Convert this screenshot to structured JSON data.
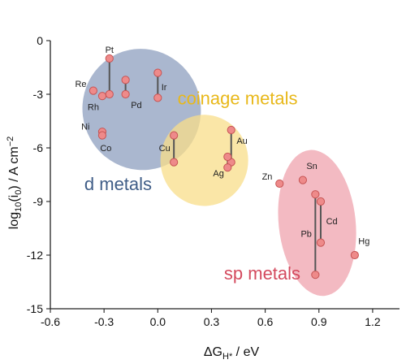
{
  "chart_data": {
    "type": "scatter",
    "xlabel_main": "ΔG",
    "xlabel_sub": "H*",
    "xlabel_tail": " / eV",
    "ylabel_main": "log",
    "ylabel_sub1": "10",
    "ylabel_paren_open": "(i",
    "ylabel_sub2": "0",
    "ylabel_paren_close": ") / A cm",
    "ylabel_sup": "−2",
    "xlim": [
      -0.6,
      1.35
    ],
    "ylim": [
      -15,
      0
    ],
    "xticks": [
      -0.6,
      -0.3,
      0.0,
      0.3,
      0.6,
      0.9,
      1.2
    ],
    "xtick_labels": [
      "-0.6",
      "-0.3",
      "0.0",
      "0.3",
      "0.6",
      "0.9",
      "1.2"
    ],
    "yticks": [
      0,
      -3,
      -6,
      -9,
      -12,
      -15
    ],
    "ytick_labels": [
      "0",
      "-3",
      "-6",
      "-9",
      "-12",
      "-15"
    ],
    "groups": [
      {
        "name": "d metals",
        "color": "#3f5d87",
        "fill": "#8e9fbf",
        "center": [
          -0.09,
          -3.85
        ],
        "radii": [
          0.33,
          3.4
        ],
        "rotation": -18
      },
      {
        "name": "coinage metals",
        "color": "#e8b81a",
        "fill": "#f8dd8a",
        "center": [
          0.26,
          -6.7
        ],
        "radii": [
          0.245,
          2.55
        ],
        "rotation": 0
      },
      {
        "name": "sp metals",
        "color": "#d44a5e",
        "fill": "#efa3ad",
        "center": [
          0.89,
          -10.2
        ],
        "radii": [
          0.215,
          4.1
        ],
        "rotation": -6
      }
    ],
    "points": [
      {
        "metal": "Pt",
        "x": -0.27,
        "y": -1.0
      },
      {
        "metal": "Pt",
        "x": -0.27,
        "y": -3.0
      },
      {
        "metal": "Pd",
        "x": -0.18,
        "y": -2.2
      },
      {
        "metal": "Pd",
        "x": -0.18,
        "y": -3.0
      },
      {
        "metal": "Ir",
        "x": 0.0,
        "y": -1.8
      },
      {
        "metal": "Ir",
        "x": 0.0,
        "y": -3.2
      },
      {
        "metal": "Re",
        "x": -0.36,
        "y": -2.8
      },
      {
        "metal": "Rh",
        "x": -0.31,
        "y": -3.1
      },
      {
        "metal": "Ni",
        "x": -0.31,
        "y": -5.1
      },
      {
        "metal": "Co",
        "x": -0.31,
        "y": -5.3
      },
      {
        "metal": "Cu",
        "x": 0.09,
        "y": -5.3
      },
      {
        "metal": "Cu",
        "x": 0.09,
        "y": -6.8
      },
      {
        "metal": "Au",
        "x": 0.41,
        "y": -5.0
      },
      {
        "metal": "Au",
        "x": 0.41,
        "y": -6.8
      },
      {
        "metal": "Ag",
        "x": 0.39,
        "y": -6.5
      },
      {
        "metal": "Ag",
        "x": 0.39,
        "y": -7.1
      },
      {
        "metal": "Zn",
        "x": 0.68,
        "y": -8.0
      },
      {
        "metal": "Sn",
        "x": 0.81,
        "y": -7.8
      },
      {
        "metal": "Pb",
        "x": 0.88,
        "y": -8.6
      },
      {
        "metal": "Pb",
        "x": 0.88,
        "y": -13.1
      },
      {
        "metal": "Cd",
        "x": 0.91,
        "y": -9.0
      },
      {
        "metal": "Cd",
        "x": 0.91,
        "y": -11.3
      },
      {
        "metal": "Hg",
        "x": 1.1,
        "y": -12.0
      }
    ],
    "connections": [
      {
        "metal": "Pt",
        "x": -0.27,
        "y1": -1.0,
        "y2": -3.0
      },
      {
        "metal": "Pd",
        "x": -0.18,
        "y1": -2.2,
        "y2": -3.0
      },
      {
        "metal": "Ir",
        "x": 0.0,
        "y1": -1.8,
        "y2": -3.2
      },
      {
        "metal": "Cu",
        "x": 0.09,
        "y1": -5.3,
        "y2": -6.8
      },
      {
        "metal": "Au",
        "x": 0.41,
        "y1": -5.0,
        "y2": -6.8
      },
      {
        "metal": "Ag",
        "x": 0.39,
        "y1": -6.5,
        "y2": -7.1
      },
      {
        "metal": "Pb",
        "x": 0.88,
        "y1": -8.6,
        "y2": -13.1
      },
      {
        "metal": "Cd",
        "x": 0.91,
        "y1": -9.0,
        "y2": -11.3
      }
    ],
    "labels": [
      {
        "text": "Pt",
        "x": -0.27,
        "y": -0.5,
        "anchor": "middle"
      },
      {
        "text": "Re",
        "x": -0.43,
        "y": -2.4,
        "anchor": "middle"
      },
      {
        "text": "Rh",
        "x": -0.36,
        "y": -3.7,
        "anchor": "middle"
      },
      {
        "text": "Pd",
        "x": -0.15,
        "y": -3.6,
        "anchor": "start"
      },
      {
        "text": "Ir",
        "x": 0.02,
        "y": -2.6,
        "anchor": "start"
      },
      {
        "text": "Ni",
        "x": -0.38,
        "y": -4.8,
        "anchor": "end"
      },
      {
        "text": "Co",
        "x": -0.29,
        "y": -6.0,
        "anchor": "middle"
      },
      {
        "text": "Cu",
        "x": 0.07,
        "y": -6.0,
        "anchor": "end"
      },
      {
        "text": "Au",
        "x": 0.44,
        "y": -5.6,
        "anchor": "start"
      },
      {
        "text": "Ag",
        "x": 0.37,
        "y": -7.4,
        "anchor": "end"
      },
      {
        "text": "Zn",
        "x": 0.64,
        "y": -7.6,
        "anchor": "end"
      },
      {
        "text": "Sn",
        "x": 0.83,
        "y": -7.0,
        "anchor": "start"
      },
      {
        "text": "Pb",
        "x": 0.86,
        "y": -10.8,
        "anchor": "end"
      },
      {
        "text": "Cd",
        "x": 0.94,
        "y": -10.1,
        "anchor": "start"
      },
      {
        "text": "Hg",
        "x": 1.12,
        "y": -11.2,
        "anchor": "start"
      }
    ],
    "group_labels": [
      {
        "text": "d metals",
        "x": -0.41,
        "y": -8.0,
        "color": "#3f5d87"
      },
      {
        "text": "coinage metals",
        "x": 0.11,
        "y": -3.2,
        "color": "#e8b81a"
      },
      {
        "text": "sp metals",
        "x": 0.37,
        "y": -13.0,
        "color": "#d44a5e"
      }
    ]
  }
}
